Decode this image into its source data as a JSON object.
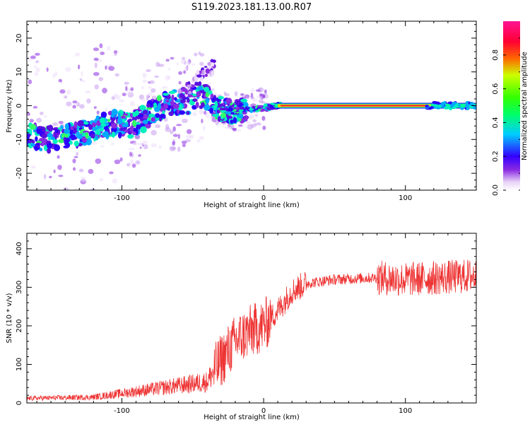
{
  "title": "S119.2023.181.13.00.R07",
  "chart_data": [
    {
      "type": "heatmap",
      "xlabel": "Height of straight line (km)",
      "ylabel": "Frequency (Hz)",
      "xlim": [
        -167,
        150
      ],
      "ylim": [
        -25,
        25
      ],
      "xticks": [
        -100,
        0,
        100
      ],
      "yticks": [
        -20,
        -10,
        0,
        10,
        20
      ],
      "colorbar": {
        "label": "Normalized spectral amplitude",
        "range": [
          0.0,
          1.0
        ],
        "ticks": [
          0.0,
          0.2,
          0.4,
          0.6,
          0.8
        ]
      },
      "ridge": [
        {
          "x": -165,
          "f": -9
        },
        {
          "x": -150,
          "f": -10
        },
        {
          "x": -135,
          "f": -9
        },
        {
          "x": -120,
          "f": -7
        },
        {
          "x": -105,
          "f": -5
        },
        {
          "x": -95,
          "f": -6
        },
        {
          "x": -85,
          "f": -4
        },
        {
          "x": -75,
          "f": -1
        },
        {
          "x": -65,
          "f": 1
        },
        {
          "x": -55,
          "f": 1
        },
        {
          "x": -45,
          "f": 3
        },
        {
          "x": -38,
          "f": 2
        },
        {
          "x": -32,
          "f": -1
        },
        {
          "x": -25,
          "f": -1.5
        },
        {
          "x": -15,
          "f": -1.5
        },
        {
          "x": -5,
          "f": -1
        },
        {
          "x": 10,
          "f": 0
        },
        {
          "x": 150,
          "f": 0
        }
      ]
    },
    {
      "type": "line",
      "xlabel": "Height of straight line (km)",
      "ylabel": "SNR (10 * v/v)",
      "xlim": [
        -167,
        150
      ],
      "ylim": [
        0,
        440
      ],
      "xticks": [
        -100,
        0,
        100
      ],
      "yticks": [
        0,
        100,
        200,
        300,
        400
      ],
      "color": "#ee3333",
      "trend": [
        {
          "x": -167,
          "y": 12
        },
        {
          "x": -120,
          "y": 15
        },
        {
          "x": -100,
          "y": 25
        },
        {
          "x": -80,
          "y": 35
        },
        {
          "x": -60,
          "y": 45
        },
        {
          "x": -40,
          "y": 55
        },
        {
          "x": -30,
          "y": 110
        },
        {
          "x": -20,
          "y": 160
        },
        {
          "x": -10,
          "y": 185
        },
        {
          "x": 0,
          "y": 200
        },
        {
          "x": 10,
          "y": 240
        },
        {
          "x": 20,
          "y": 290
        },
        {
          "x": 30,
          "y": 310
        },
        {
          "x": 50,
          "y": 320
        },
        {
          "x": 80,
          "y": 325
        },
        {
          "x": 100,
          "y": 320
        },
        {
          "x": 150,
          "y": 330
        }
      ]
    }
  ]
}
